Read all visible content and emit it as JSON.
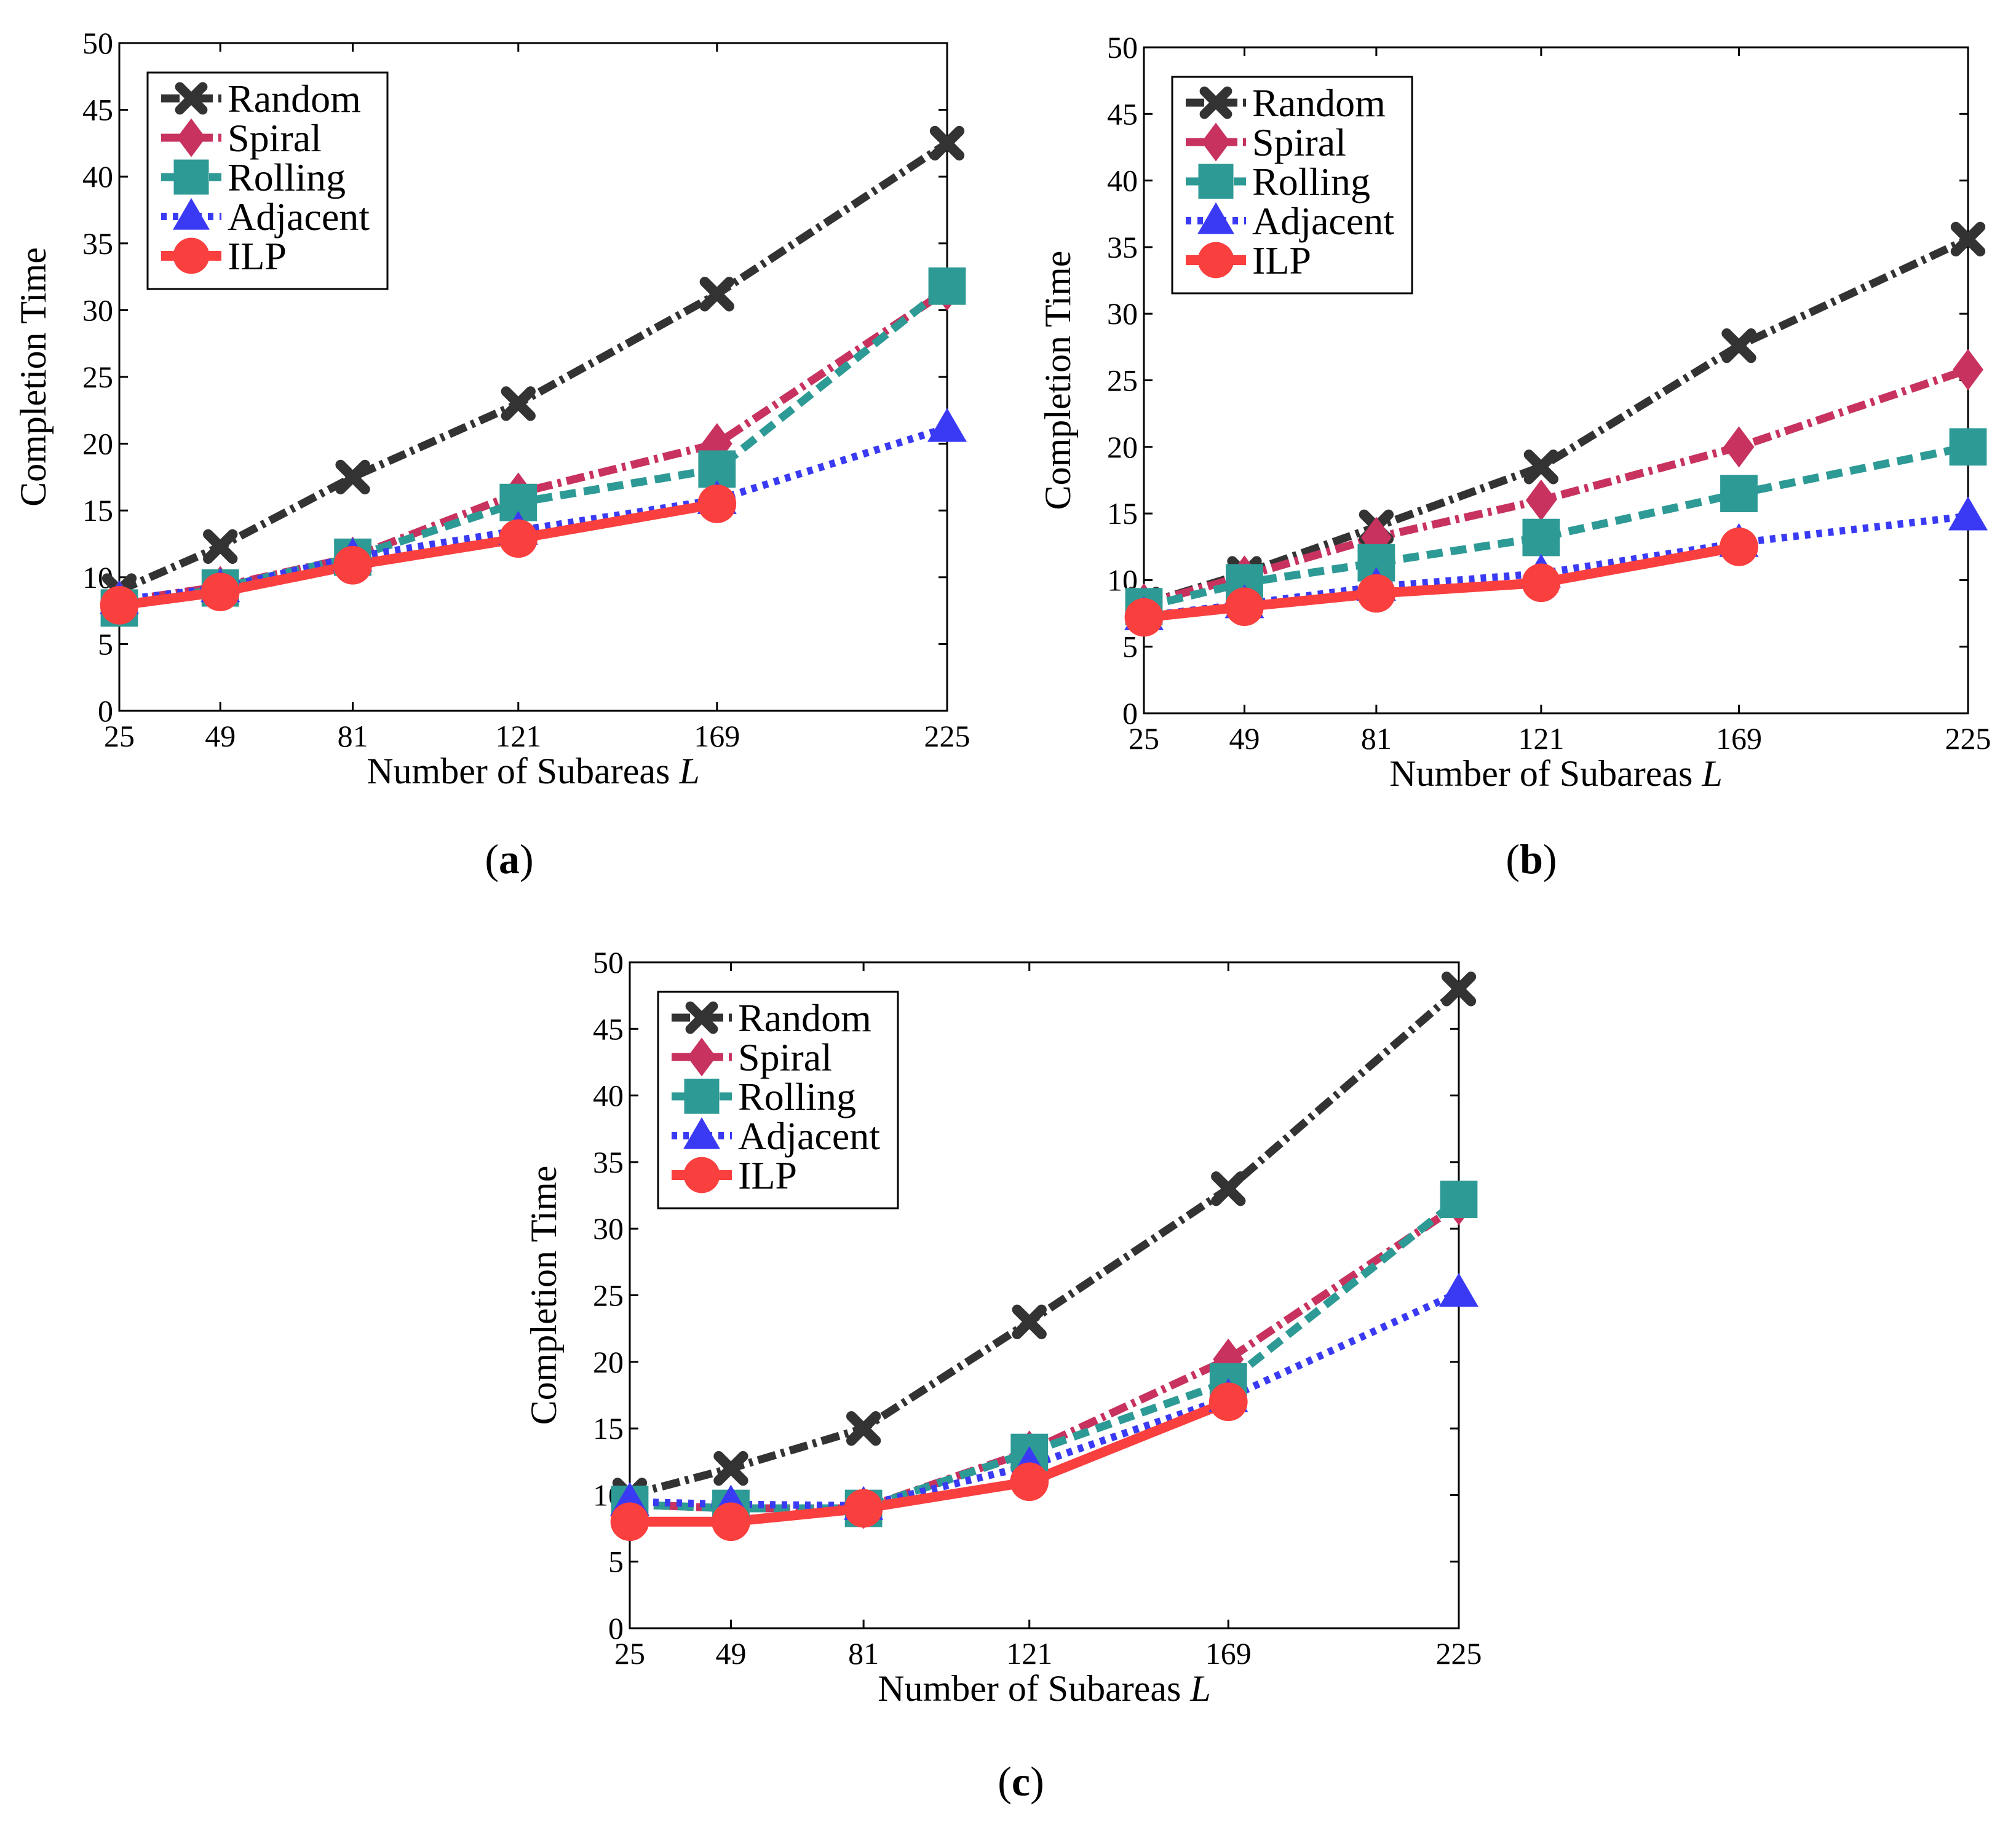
{
  "chart_data": [
    {
      "type": "line",
      "caption_letter": "a",
      "title": "",
      "xlabel": "Number of Subareas",
      "xlabel_var": "L",
      "ylabel": "Completion Time",
      "x": [
        25,
        49,
        81,
        121,
        169,
        225
      ],
      "x_tick_labels": [
        "25",
        "49",
        "81",
        "121",
        "169",
        "225"
      ],
      "ylim": [
        0,
        50
      ],
      "y_ticks": [
        0,
        5,
        10,
        15,
        20,
        25,
        30,
        35,
        40,
        45,
        50
      ],
      "legend_position": "top-left",
      "series": [
        {
          "name": "Random",
          "values": [
            9,
            12.3,
            17.5,
            23,
            31.2,
            42.5
          ],
          "color": "#333333",
          "marker": "cross",
          "dash": "dashdot"
        },
        {
          "name": "Spiral",
          "values": [
            8.2,
            9.3,
            11.5,
            16.3,
            20,
            31.5
          ],
          "color": "#c8325f",
          "marker": "diamond",
          "dash": "dashdot"
        },
        {
          "name": "Rolling",
          "values": [
            7.7,
            9.2,
            11.5,
            15.6,
            18.1,
            31.8
          ],
          "color": "#2e9a95",
          "marker": "square",
          "dash": "dashed"
        },
        {
          "name": "Adjacent",
          "values": [
            8.3,
            9.2,
            11.5,
            13.5,
            15.8,
            21.2
          ],
          "color": "#3a3af5",
          "marker": "triangle",
          "dash": "dotted"
        },
        {
          "name": "ILP",
          "values": [
            7.9,
            8.9,
            10.9,
            12.9,
            15.5,
            null
          ],
          "color": "#fa3f3f",
          "marker": "circle",
          "dash": "solid"
        }
      ]
    },
    {
      "type": "line",
      "caption_letter": "b",
      "title": "",
      "xlabel": "Number of Subareas",
      "xlabel_var": "L",
      "ylabel": "Completion Time",
      "x": [
        25,
        49,
        81,
        121,
        169,
        225
      ],
      "x_tick_labels": [
        "25",
        "49",
        "81",
        "121",
        "169",
        "225"
      ],
      "ylim": [
        0,
        50
      ],
      "y_ticks": [
        0,
        5,
        10,
        15,
        20,
        25,
        30,
        35,
        40,
        45,
        50
      ],
      "legend_position": "top-left",
      "series": [
        {
          "name": "Random",
          "values": [
            8.2,
            10.5,
            14,
            18.5,
            27.6,
            35.6
          ],
          "color": "#333333",
          "marker": "cross",
          "dash": "dashdot"
        },
        {
          "name": "Spiral",
          "values": [
            8.2,
            10.3,
            13.2,
            16,
            20,
            25.8
          ],
          "color": "#c8325f",
          "marker": "diamond",
          "dash": "dashdot"
        },
        {
          "name": "Rolling",
          "values": [
            8,
            9.8,
            11.3,
            13.2,
            16.5,
            20
          ],
          "color": "#2e9a95",
          "marker": "square",
          "dash": "dashed"
        },
        {
          "name": "Adjacent",
          "values": [
            7.3,
            8.2,
            9.5,
            10.5,
            12.8,
            14.8
          ],
          "color": "#3a3af5",
          "marker": "triangle",
          "dash": "dotted"
        },
        {
          "name": "ILP",
          "values": [
            7.2,
            8,
            9,
            9.8,
            12.5,
            null
          ],
          "color": "#fa3f3f",
          "marker": "circle",
          "dash": "solid"
        }
      ]
    },
    {
      "type": "line",
      "caption_letter": "c",
      "title": "",
      "xlabel": "Number of Subareas",
      "xlabel_var": "L",
      "ylabel": "Completion Time",
      "x": [
        25,
        49,
        81,
        121,
        169,
        225
      ],
      "x_tick_labels": [
        "25",
        "49",
        "81",
        "121",
        "169",
        "225"
      ],
      "ylim": [
        0,
        50
      ],
      "y_ticks": [
        0,
        5,
        10,
        15,
        20,
        25,
        30,
        35,
        40,
        45,
        50
      ],
      "legend_position": "top-left",
      "series": [
        {
          "name": "Random",
          "values": [
            10,
            12,
            15,
            23,
            33,
            48
          ],
          "color": "#333333",
          "marker": "cross",
          "dash": "dashdot"
        },
        {
          "name": "Spiral",
          "values": [
            9.3,
            9,
            9,
            13.3,
            20.2,
            31.8
          ],
          "color": "#c8325f",
          "marker": "diamond",
          "dash": "dashdot"
        },
        {
          "name": "Rolling",
          "values": [
            9.3,
            9,
            9,
            13.2,
            18.5,
            32.2
          ],
          "color": "#2e9a95",
          "marker": "square",
          "dash": "dashed"
        },
        {
          "name": "Adjacent",
          "values": [
            9.5,
            9.3,
            9.2,
            12.2,
            17.3,
            25.2
          ],
          "color": "#3a3af5",
          "marker": "triangle",
          "dash": "dotted"
        },
        {
          "name": "ILP",
          "values": [
            8,
            8,
            9,
            11,
            17,
            null
          ],
          "color": "#fa3f3f",
          "marker": "circle",
          "dash": "solid"
        }
      ]
    }
  ]
}
